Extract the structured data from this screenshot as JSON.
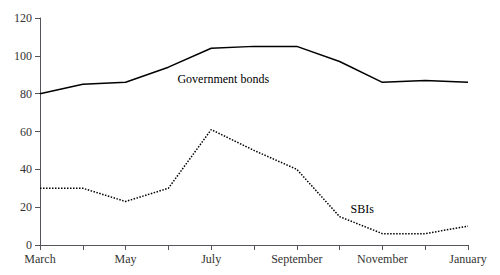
{
  "chart_data": {
    "type": "line",
    "categories": [
      "March",
      null,
      "May",
      null,
      "July",
      null,
      "September",
      null,
      "November",
      null,
      "January"
    ],
    "series": [
      {
        "name": "Government bonds",
        "color": "#000000",
        "line_style": "solid",
        "values": [
          80,
          85,
          86,
          94,
          104,
          105,
          105,
          97,
          86,
          87,
          86
        ]
      },
      {
        "name": "SBIs",
        "color": "#000000",
        "line_style": "dotted",
        "values": [
          30,
          30,
          23,
          30,
          61,
          50,
          40,
          15,
          6,
          6,
          10
        ]
      }
    ],
    "ylim": [
      0,
      120
    ],
    "yticks": [
      0,
      20,
      40,
      60,
      80,
      100,
      120
    ],
    "grid": false
  }
}
